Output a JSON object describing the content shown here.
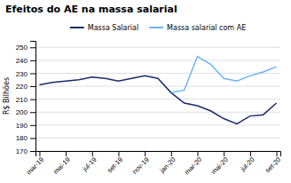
{
  "chart_data": {
    "type": "line",
    "title": "Efeitos do AE na massa salarial",
    "ylabel": "R$ Bilhões",
    "categories": [
      "mar-19",
      null,
      "mai-19",
      null,
      "jul-19",
      null,
      "set-19",
      null,
      "nov-19",
      null,
      "jan-20",
      null,
      "mar-20",
      null,
      "mai-20",
      null,
      "jul-20",
      null,
      "set-20"
    ],
    "series": [
      {
        "name": "Massa Salarial",
        "color": "#1a2b6b",
        "values": [
          221,
          223,
          224,
          225,
          227,
          226,
          224,
          226,
          228,
          226,
          215,
          207,
          205,
          201,
          195,
          191,
          197,
          198,
          207
        ]
      },
      {
        "name": "Massa salarial com AE",
        "color": "#6ab4f5",
        "values": [
          null,
          null,
          null,
          null,
          null,
          null,
          null,
          null,
          null,
          null,
          215,
          217,
          243,
          237,
          226,
          224,
          228,
          231,
          235
        ]
      }
    ],
    "ylim": [
      170,
      255
    ],
    "yticks": [
      170,
      180,
      190,
      200,
      210,
      220,
      230,
      240,
      250
    ],
    "grid": true,
    "legend": "top"
  }
}
